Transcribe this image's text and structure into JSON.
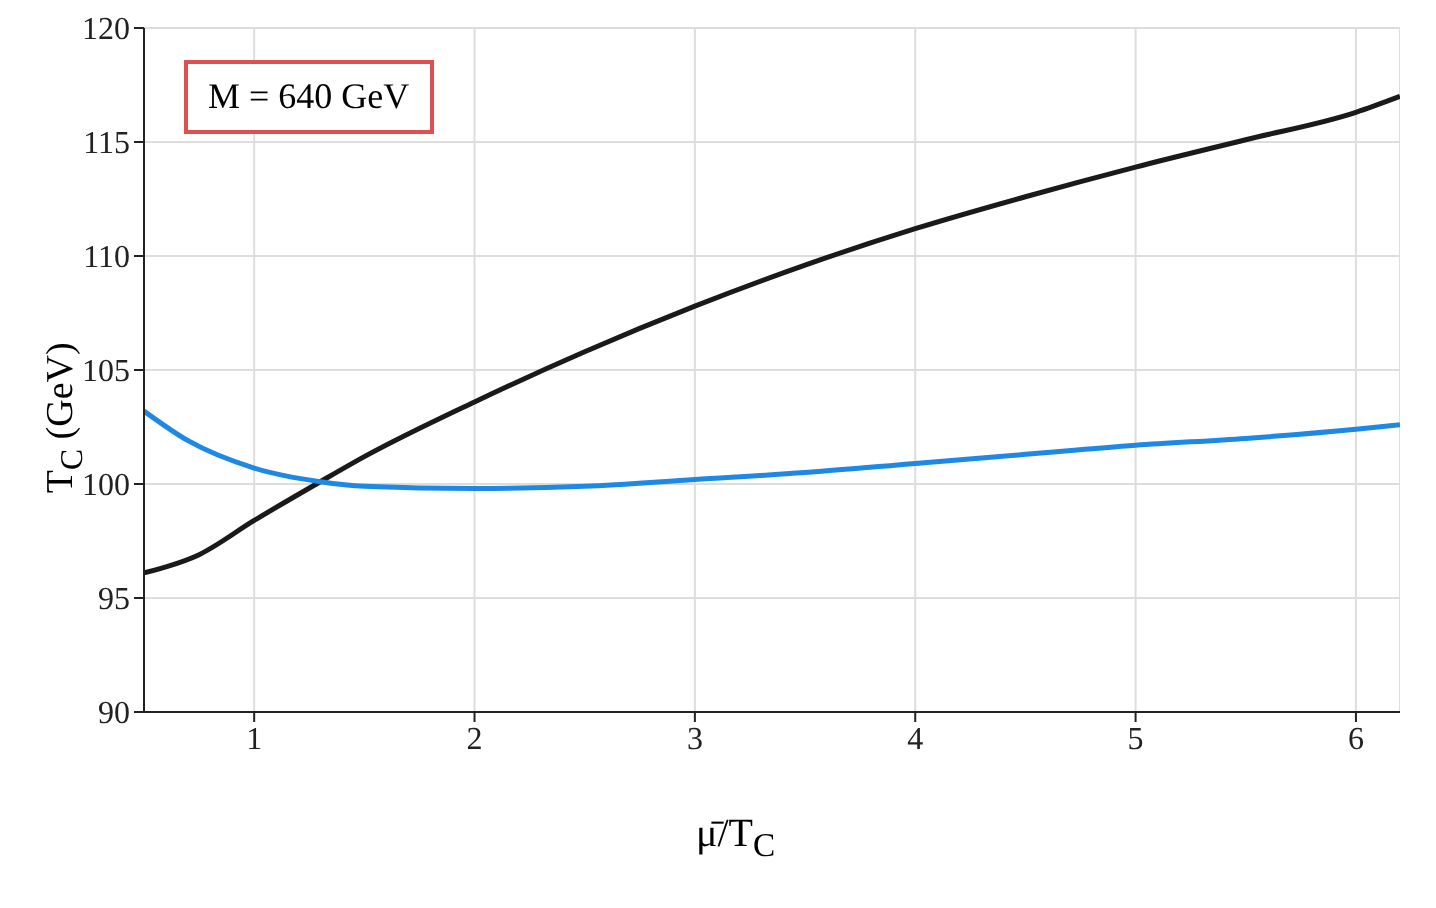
{
  "chart_data": {
    "type": "line",
    "xlabel": "μ̄/T$_{C}$",
    "ylabel": "T$_{C}$ (GeV)",
    "annotations": [
      "M = 640 GeV"
    ],
    "xlim": [
      0.5,
      6.2
    ],
    "ylim": [
      90,
      120
    ],
    "xticks": [
      1,
      2,
      3,
      4,
      5,
      6
    ],
    "yticks": [
      90,
      95,
      100,
      105,
      110,
      115,
      120
    ],
    "grid": true,
    "marker": "none",
    "line_style": "solid",
    "series": [
      {
        "color": "#1a1a1a",
        "x": [
          0.5,
          0.75,
          1,
          1.3,
          1.5,
          2,
          2.5,
          3,
          3.5,
          4,
          4.5,
          5,
          5.5,
          6,
          6.2
        ],
        "values": [
          96.1,
          96.9,
          98.4,
          100.1,
          101.2,
          103.6,
          105.8,
          107.8,
          109.6,
          111.2,
          112.6,
          113.9,
          115.1,
          116.3,
          117.0
        ]
      },
      {
        "color": "#1e88e5",
        "x": [
          0.5,
          0.7,
          1,
          1.3,
          1.5,
          2,
          2.5,
          3,
          3.5,
          4,
          4.5,
          5,
          5.5,
          6,
          6.2
        ],
        "values": [
          103.2,
          101.9,
          100.7,
          100.1,
          99.9,
          99.8,
          99.9,
          100.2,
          100.5,
          100.9,
          101.3,
          101.7,
          102.0,
          102.4,
          102.6
        ]
      }
    ]
  }
}
